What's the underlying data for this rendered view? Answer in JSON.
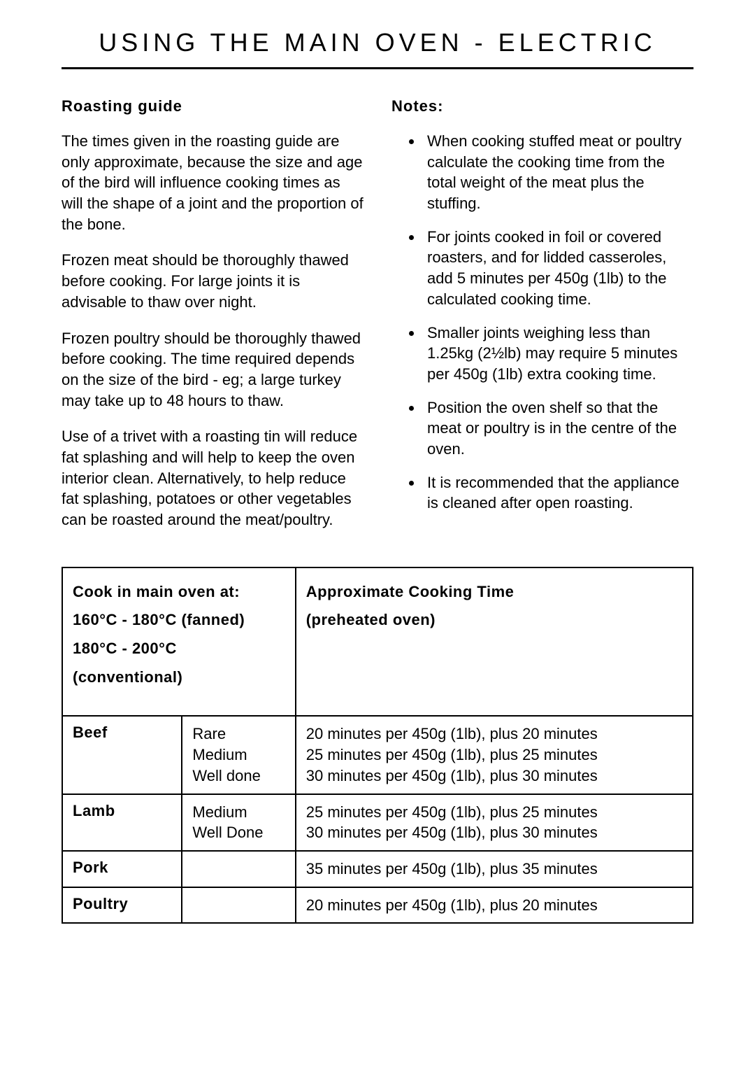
{
  "title": "USING THE MAIN OVEN - ELECTRIC",
  "left": {
    "heading": "Roasting guide",
    "p1": "The times given in the roasting guide are only approximate, because the size and age of the bird will influence cooking times as will the shape of a joint and the proportion of the bone.",
    "p2": "Frozen meat should be thoroughly thawed before cooking. For large joints it is advisable to thaw over night.",
    "p3": "Frozen poultry should be thoroughly thawed before cooking. The time required depends on the size of the bird - eg; a large turkey may take up to 48 hours to thaw.",
    "p4": "Use of a trivet with a roasting tin will reduce fat splashing and will help to keep the oven interior clean. Alternatively, to help reduce fat splashing, potatoes or other vegetables can be roasted around the meat/poultry."
  },
  "right": {
    "heading": "Notes:",
    "n1": "When cooking stuffed meat or poultry calculate the cooking time from the total weight of the meat plus the stuffing.",
    "n2": "For joints cooked in foil or covered roasters, and for lidded casseroles, add 5 minutes per 450g (1lb) to the calculated cooking time.",
    "n3": "Smaller joints weighing less than 1.25kg (2½lb) may require 5 minutes per 450g (1lb) extra cooking time.",
    "n4": "Position the oven shelf so that the meat or poultry is in the centre of the oven.",
    "n5": "It is recommended that the appliance is cleaned after open roasting."
  },
  "table": {
    "hdr_left_1": "Cook in main oven at:",
    "hdr_left_2": "160°C - 180°C (fanned)",
    "hdr_left_3": "180°C - 200°C (conventional)",
    "hdr_right_1": "Approximate Cooking Time",
    "hdr_right_2": "(preheated oven)",
    "rows": [
      {
        "meat": "Beef",
        "doneness": "Rare\nMedium\nWell done",
        "time": "20 minutes per 450g (1lb), plus 20 minutes\n25 minutes per 450g (1lb), plus 25 minutes\n30 minutes per 450g (1lb), plus 30 minutes"
      },
      {
        "meat": "Lamb",
        "doneness": "Medium\nWell Done",
        "time": "25 minutes per 450g (1lb), plus 25 minutes\n30 minutes per 450g (1lb), plus 30 minutes"
      },
      {
        "meat": "Pork",
        "doneness": "",
        "time": "35 minutes per 450g (1lb), plus 35 minutes"
      },
      {
        "meat": "Poultry",
        "doneness": "",
        "time": "20 minutes per 450g (1lb), plus 20 minutes"
      }
    ]
  }
}
